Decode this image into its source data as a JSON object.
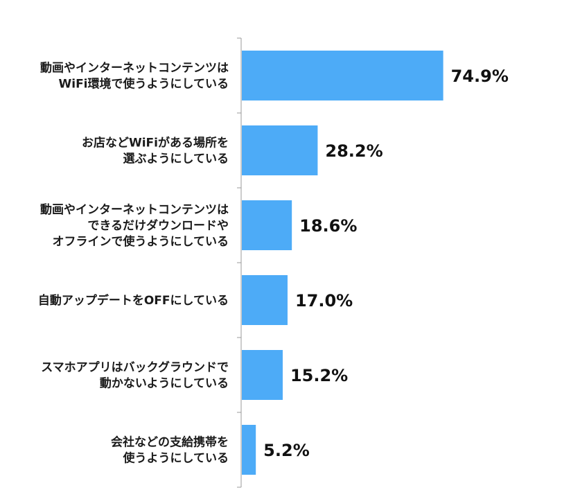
{
  "chart_data": {
    "type": "bar",
    "orientation": "horizontal",
    "categories": [
      [
        "動画やインターネットコンテンツは",
        "WiFi環境で使うようにしている"
      ],
      [
        "お店などWiFiがある場所を",
        "選ぶようにしている"
      ],
      [
        "動画やインターネットコンテンツは",
        "できるだけダウンロードや",
        "オフラインで使うようにしている"
      ],
      [
        "自動アップデートをOFFにしている"
      ],
      [
        "スマホアプリはバックグラウンドで",
        "動かないようにしている"
      ],
      [
        "会社などの支給携帯を",
        "使うようにしている"
      ]
    ],
    "values": [
      74.9,
      28.2,
      18.6,
      17.0,
      15.2,
      5.2
    ],
    "value_labels": [
      "74.9%",
      "28.2%",
      "18.6%",
      "17.0%",
      "15.2%",
      "5.2%"
    ],
    "xlim": [
      0,
      80
    ],
    "title": "",
    "xlabel": "",
    "ylabel": "",
    "grid": false,
    "legend": "none",
    "bar_color": "#4DABF7",
    "axis_color": "#9a9a9a"
  }
}
